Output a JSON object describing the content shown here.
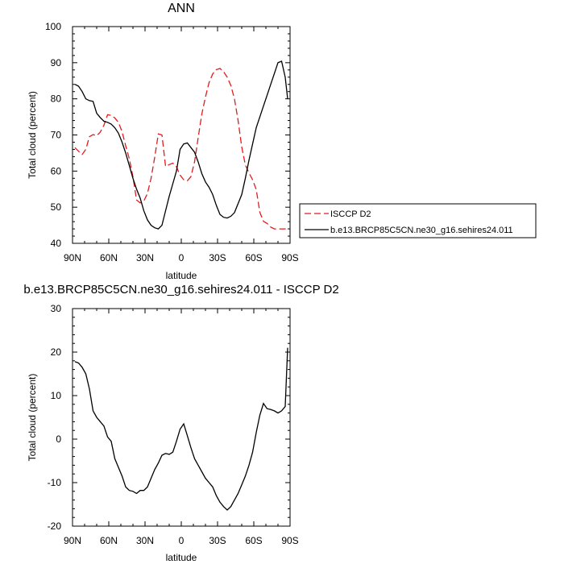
{
  "chart_data": [
    {
      "type": "line",
      "title": "ANN",
      "xlabel": "latitude",
      "ylabel": "Total cloud (percent)",
      "xlim": [
        90,
        -90
      ],
      "ylim": [
        40,
        100
      ],
      "x_ticks": [
        90,
        60,
        30,
        0,
        -30,
        -60,
        -90
      ],
      "x_tick_labels": [
        "90N",
        "60N",
        "30N",
        "0",
        "30S",
        "60S",
        "90S"
      ],
      "y_ticks": [
        40,
        50,
        60,
        70,
        80,
        90,
        100
      ],
      "y_tick_labels": [
        "40",
        "50",
        "60",
        "70",
        "80",
        "90",
        "100"
      ],
      "grid": false,
      "legend_position": "right",
      "series": [
        {
          "name": "ISCCP D2",
          "color": "#e31a1c",
          "dash": "dashed",
          "x": [
            88,
            85,
            82,
            79,
            76,
            73,
            70,
            67,
            64,
            61,
            58,
            55,
            52,
            49,
            46,
            43,
            40,
            37,
            34,
            31,
            28,
            25,
            22,
            19,
            16,
            13,
            10,
            7,
            4,
            1,
            -2,
            -5,
            -8,
            -11,
            -14,
            -17,
            -20,
            -23,
            -26,
            -29,
            -32,
            -35,
            -38,
            -41,
            -44,
            -47,
            -50,
            -53,
            -56,
            -59,
            -62,
            -65,
            -68,
            -71,
            -74,
            -77,
            -80,
            -83,
            -86,
            -88
          ],
          "y": [
            66.5,
            65.5,
            64.6,
            66.0,
            69.5,
            70.1,
            69.8,
            70.8,
            72.7,
            75.6,
            75.4,
            74.7,
            73.5,
            70.9,
            67.0,
            63.4,
            58.4,
            52.0,
            51.2,
            51.7,
            53.8,
            58.0,
            63.8,
            70.3,
            70.0,
            61.3,
            61.8,
            62.2,
            61.2,
            58.9,
            57.6,
            57.3,
            58.5,
            62.6,
            69.3,
            75.8,
            80.5,
            84.5,
            86.9,
            88.1,
            88.4,
            87.5,
            86.0,
            83.7,
            80.0,
            74.0,
            66.7,
            61.7,
            59.5,
            57.6,
            54.9,
            48.6,
            46.1,
            45.5,
            44.5,
            44.0,
            44.0,
            44.0,
            44.0,
            44.0
          ]
        },
        {
          "name": "b.e13.BRCP85C5CN.ne30_g16.sehires24.011",
          "color": "#000000",
          "dash": "solid",
          "x": [
            88,
            85,
            82,
            79,
            76,
            73,
            70,
            67,
            64,
            61,
            58,
            55,
            52,
            49,
            46,
            43,
            40,
            37,
            34,
            31,
            28,
            25,
            22,
            19,
            16,
            13,
            10,
            7,
            4,
            1,
            -2,
            -5,
            -8,
            -11,
            -14,
            -17,
            -20,
            -23,
            -26,
            -29,
            -32,
            -35,
            -38,
            -41,
            -44,
            -47,
            -50,
            -53,
            -56,
            -59,
            -62,
            -65,
            -68,
            -71,
            -74,
            -77,
            -80,
            -83,
            -86,
            -88
          ],
          "y": [
            84.0,
            83.5,
            82.0,
            80.0,
            79.5,
            79.3,
            76.0,
            74.8,
            73.8,
            73.5,
            73.0,
            72.0,
            70.5,
            68.0,
            65.0,
            61.5,
            58.0,
            55.0,
            52.5,
            49.0,
            46.5,
            45.0,
            44.3,
            44.0,
            45.0,
            49.0,
            53.0,
            56.5,
            60.0,
            66.0,
            67.5,
            67.8,
            66.5,
            65.2,
            62.5,
            59.3,
            57.0,
            55.5,
            53.5,
            50.5,
            48.0,
            47.2,
            47.0,
            47.5,
            48.5,
            51.0,
            53.5,
            58.0,
            63.0,
            67.5,
            72.0,
            75.0,
            78.0,
            81.0,
            84.0,
            87.0,
            90.0,
            90.4,
            86.0,
            80.0
          ]
        }
      ]
    },
    {
      "type": "line",
      "title": "b.e13.BRCP85C5CN.ne30_g16.sehires24.011 - ISCCP D2",
      "xlabel": "latitude",
      "ylabel": "Total cloud (percent)",
      "xlim": [
        90,
        -90
      ],
      "ylim": [
        -20,
        30
      ],
      "x_ticks": [
        90,
        60,
        30,
        0,
        -30,
        -60,
        -90
      ],
      "x_tick_labels": [
        "90N",
        "60N",
        "30N",
        "0",
        "30S",
        "60S",
        "90S"
      ],
      "y_ticks": [
        -20,
        -10,
        0,
        10,
        20,
        30
      ],
      "y_tick_labels": [
        "-20",
        "-10",
        "0",
        "10",
        "20",
        "30"
      ],
      "grid": false,
      "series": [
        {
          "color": "#000000",
          "dash": "solid",
          "x": [
            88,
            85,
            82,
            79,
            76,
            73,
            70,
            67,
            64,
            61,
            58,
            55,
            52,
            49,
            46,
            43,
            40,
            37,
            34,
            31,
            28,
            25,
            22,
            19,
            16,
            13,
            10,
            7,
            4,
            1,
            -2,
            -5,
            -8,
            -11,
            -14,
            -17,
            -20,
            -23,
            -26,
            -29,
            -32,
            -35,
            -38,
            -41,
            -44,
            -47,
            -50,
            -53,
            -56,
            -59,
            -62,
            -65,
            -68,
            -71,
            -74,
            -77,
            -80,
            -83,
            -86,
            -88
          ],
          "y": [
            17.8,
            17.5,
            16.5,
            15.0,
            11.5,
            6.5,
            5.0,
            4.0,
            3.0,
            0.5,
            -0.5,
            -4.5,
            -6.5,
            -8.5,
            -11.0,
            -11.8,
            -12.0,
            -12.5,
            -11.8,
            -11.8,
            -11.0,
            -9.0,
            -7.0,
            -5.5,
            -3.7,
            -3.3,
            -3.5,
            -3.0,
            -0.5,
            2.3,
            3.5,
            0.8,
            -2.0,
            -4.5,
            -6.0,
            -7.5,
            -9.0,
            -10.0,
            -11.0,
            -13.0,
            -14.5,
            -15.5,
            -16.3,
            -15.5,
            -14.0,
            -12.5,
            -10.5,
            -8.5,
            -6.0,
            -3.0,
            1.5,
            5.5,
            8.2,
            7.0,
            6.8,
            6.5,
            6.0,
            6.5,
            7.5,
            21.0
          ]
        }
      ]
    }
  ]
}
